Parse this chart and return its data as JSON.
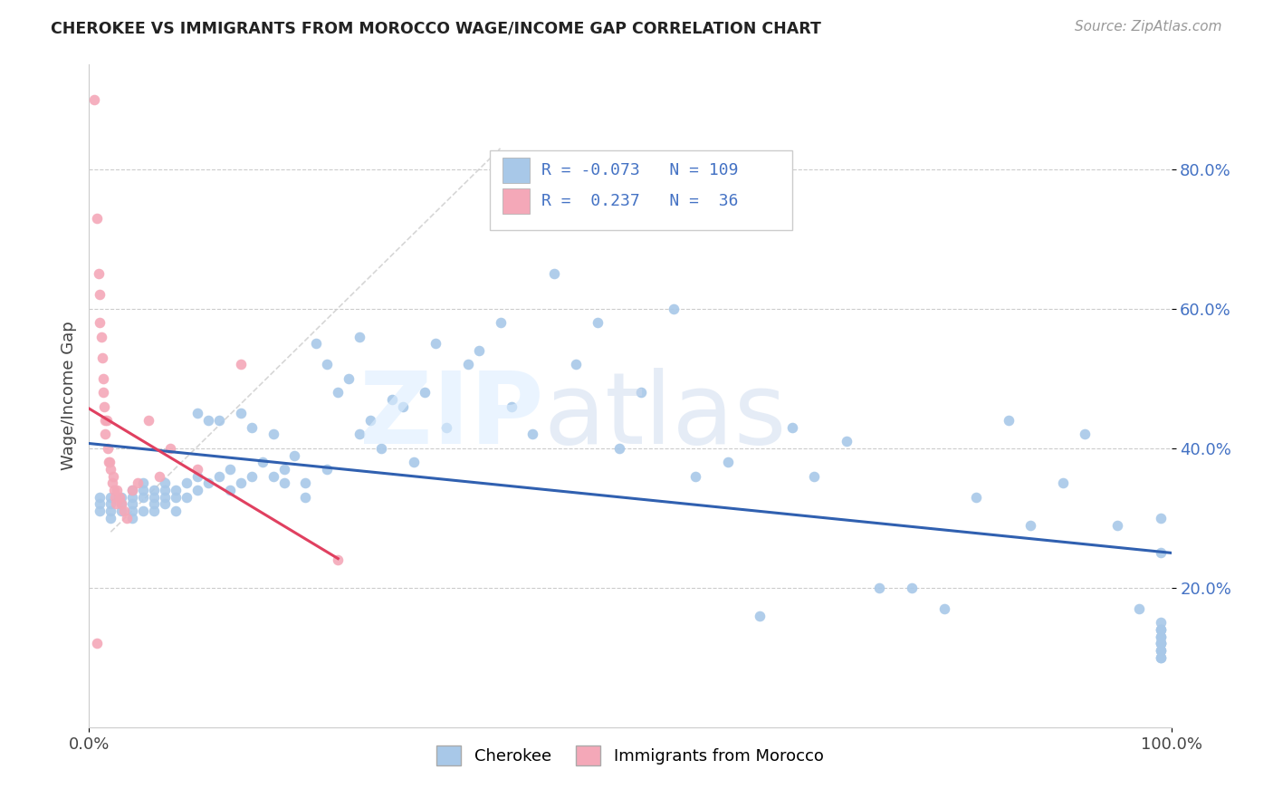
{
  "title": "CHEROKEE VS IMMIGRANTS FROM MOROCCO WAGE/INCOME GAP CORRELATION CHART",
  "source": "Source: ZipAtlas.com",
  "ylabel": "Wage/Income Gap",
  "color_cherokee": "#A8C8E8",
  "color_morocco": "#F4A8B8",
  "color_line_cherokee": "#3060B0",
  "color_line_morocco": "#E04060",
  "color_diag": "#C8C8C8",
  "cherokee_x": [
    0.01,
    0.01,
    0.01,
    0.02,
    0.02,
    0.02,
    0.02,
    0.03,
    0.03,
    0.03,
    0.04,
    0.04,
    0.04,
    0.04,
    0.04,
    0.05,
    0.05,
    0.05,
    0.05,
    0.06,
    0.06,
    0.06,
    0.06,
    0.07,
    0.07,
    0.07,
    0.07,
    0.08,
    0.08,
    0.08,
    0.09,
    0.09,
    0.1,
    0.1,
    0.1,
    0.11,
    0.11,
    0.12,
    0.12,
    0.13,
    0.13,
    0.14,
    0.14,
    0.15,
    0.15,
    0.16,
    0.17,
    0.17,
    0.18,
    0.18,
    0.19,
    0.2,
    0.2,
    0.21,
    0.22,
    0.22,
    0.23,
    0.24,
    0.25,
    0.25,
    0.26,
    0.27,
    0.28,
    0.29,
    0.3,
    0.31,
    0.32,
    0.33,
    0.35,
    0.36,
    0.38,
    0.39,
    0.41,
    0.43,
    0.45,
    0.47,
    0.49,
    0.51,
    0.54,
    0.56,
    0.59,
    0.62,
    0.65,
    0.67,
    0.7,
    0.73,
    0.76,
    0.79,
    0.82,
    0.85,
    0.87,
    0.9,
    0.92,
    0.95,
    0.97,
    0.99,
    0.99,
    0.99,
    0.99,
    0.99,
    0.99,
    0.99,
    0.99,
    0.99,
    0.99,
    0.99,
    0.99,
    0.99,
    0.99
  ],
  "cherokee_y": [
    0.33,
    0.32,
    0.31,
    0.33,
    0.32,
    0.31,
    0.3,
    0.33,
    0.32,
    0.31,
    0.34,
    0.33,
    0.32,
    0.31,
    0.3,
    0.35,
    0.34,
    0.33,
    0.31,
    0.34,
    0.33,
    0.32,
    0.31,
    0.35,
    0.34,
    0.33,
    0.32,
    0.34,
    0.33,
    0.31,
    0.35,
    0.33,
    0.45,
    0.36,
    0.34,
    0.44,
    0.35,
    0.44,
    0.36,
    0.37,
    0.34,
    0.45,
    0.35,
    0.36,
    0.43,
    0.38,
    0.42,
    0.36,
    0.37,
    0.35,
    0.39,
    0.35,
    0.33,
    0.55,
    0.52,
    0.37,
    0.48,
    0.5,
    0.56,
    0.42,
    0.44,
    0.4,
    0.47,
    0.46,
    0.38,
    0.48,
    0.55,
    0.43,
    0.52,
    0.54,
    0.58,
    0.46,
    0.42,
    0.65,
    0.52,
    0.58,
    0.4,
    0.48,
    0.6,
    0.36,
    0.38,
    0.16,
    0.43,
    0.36,
    0.41,
    0.2,
    0.2,
    0.17,
    0.33,
    0.44,
    0.29,
    0.35,
    0.42,
    0.29,
    0.17,
    0.3,
    0.25,
    0.15,
    0.14,
    0.13,
    0.12,
    0.11,
    0.14,
    0.12,
    0.1,
    0.13,
    0.11,
    0.12,
    0.1
  ],
  "morocco_x": [
    0.005,
    0.007,
    0.007,
    0.009,
    0.01,
    0.01,
    0.011,
    0.012,
    0.013,
    0.013,
    0.014,
    0.015,
    0.015,
    0.016,
    0.017,
    0.018,
    0.019,
    0.02,
    0.021,
    0.022,
    0.023,
    0.024,
    0.025,
    0.026,
    0.028,
    0.03,
    0.032,
    0.035,
    0.04,
    0.045,
    0.055,
    0.065,
    0.075,
    0.1,
    0.14,
    0.23
  ],
  "morocco_y": [
    0.9,
    0.73,
    0.12,
    0.65,
    0.62,
    0.58,
    0.56,
    0.53,
    0.5,
    0.48,
    0.46,
    0.44,
    0.42,
    0.44,
    0.4,
    0.38,
    0.38,
    0.37,
    0.35,
    0.36,
    0.34,
    0.33,
    0.32,
    0.34,
    0.33,
    0.32,
    0.31,
    0.3,
    0.34,
    0.35,
    0.44,
    0.36,
    0.4,
    0.37,
    0.52,
    0.24
  ],
  "xlim": [
    0.0,
    1.0
  ],
  "ylim": [
    0.0,
    0.95
  ],
  "ytick_vals": [
    0.2,
    0.4,
    0.6,
    0.8
  ],
  "ytick_labels": [
    "20.0%",
    "40.0%",
    "60.0%",
    "80.0%"
  ],
  "xtick_vals": [
    0.0,
    1.0
  ],
  "xtick_labels": [
    "0.0%",
    "100.0%"
  ]
}
